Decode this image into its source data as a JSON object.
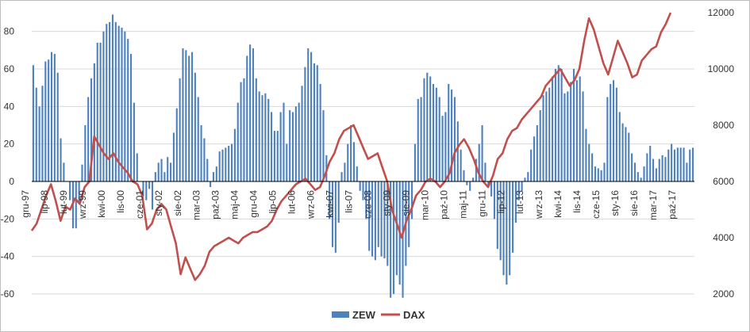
{
  "chart_data": {
    "type": "bar+line",
    "x_tick_labels": [
      "gru-97",
      "lip-98",
      "lut-99",
      "wrz-99",
      "kwi-00",
      "lis-00",
      "cze-01",
      "sty-02",
      "sie-02",
      "mar-03",
      "paź-03",
      "maj-04",
      "gru-04",
      "lip-05",
      "lut-06",
      "wrz-06",
      "kwi-07",
      "lis-07",
      "cze-08",
      "sty-09",
      "sie-09",
      "mar-10",
      "paź-10",
      "maj-11",
      "gru-11",
      "lip-12",
      "lut-13",
      "wrz-13",
      "kwi-14",
      "lis-14",
      "cze-15",
      "sty-16",
      "sie-16",
      "mar-17",
      "paź-17"
    ],
    "y_left": {
      "min": -60,
      "max": 90,
      "ticks": [
        -60,
        -40,
        -20,
        0,
        20,
        40,
        60,
        80
      ]
    },
    "y_right": {
      "min": 2000,
      "max": 12000,
      "ticks": [
        2000,
        4000,
        6000,
        8000,
        10000,
        12000
      ]
    },
    "grid": true,
    "legend_position": "bottom",
    "colors": {
      "zew": "#4f81bd",
      "dax": "#c0504d",
      "grid": "#d9d9d9",
      "axis": "#a6a6a6"
    },
    "series": [
      {
        "name": "ZEW",
        "type": "bar",
        "values": [
          62,
          50,
          40,
          51,
          64,
          65,
          69,
          68,
          58,
          23,
          10,
          0,
          -10,
          -25,
          -25,
          -12,
          9,
          30,
          45,
          55,
          63,
          74,
          74,
          80,
          84,
          85,
          89,
          85,
          83,
          82,
          80,
          76,
          68,
          42,
          15,
          0,
          -8,
          -10,
          -4,
          -15,
          5,
          10,
          12,
          5,
          13,
          10,
          26,
          39,
          55,
          71,
          70,
          67,
          69,
          58,
          45,
          30,
          23,
          12,
          -3,
          5,
          8,
          16,
          17,
          18,
          19,
          20,
          28,
          42,
          53,
          55,
          67,
          73,
          71,
          55,
          48,
          46,
          47,
          44,
          37,
          27,
          27,
          37,
          42,
          20,
          38,
          37,
          40,
          42,
          51,
          61,
          71,
          69,
          63,
          62,
          52,
          38,
          14,
          -20,
          -35,
          -38,
          -22,
          5,
          10,
          20,
          30,
          21,
          8,
          -5,
          -10,
          -20,
          -37,
          -40,
          -42,
          -35,
          -40,
          -41,
          -45,
          -62,
          -60,
          -50,
          -55,
          -62,
          -45,
          -35,
          -20,
          20,
          44,
          45,
          55,
          58,
          56,
          52,
          50,
          45,
          35,
          37,
          52,
          49,
          45,
          32,
          17,
          6,
          -2,
          -5,
          2,
          12,
          20,
          30,
          10,
          -2,
          -8,
          -20,
          -36,
          -42,
          -50,
          -55,
          -50,
          -38,
          -22,
          -10,
          -5,
          2,
          5,
          17,
          24,
          30,
          38,
          46,
          48,
          50,
          56,
          60,
          62,
          60,
          47,
          48,
          53,
          60,
          54,
          56,
          48,
          28,
          20,
          15,
          8,
          7,
          6,
          10,
          45,
          52,
          54,
          50,
          37,
          31,
          29,
          26,
          15,
          10,
          5,
          2,
          8,
          15,
          19,
          12,
          7,
          12,
          14,
          13,
          17,
          20,
          17,
          18,
          18,
          18,
          10,
          17,
          18
        ]
      },
      {
        "name": "DAX",
        "type": "line",
        "values": [
          4250,
          4500,
          5000,
          5500,
          5900,
          5300,
          4600,
          5100,
          5000,
          5400,
          5200,
          5800,
          6000,
          7600,
          7300,
          7000,
          6800,
          7000,
          6700,
          6500,
          6300,
          6000,
          5900,
          5500,
          4300,
          4500,
          5000,
          5200,
          5000,
          4400,
          3800,
          2700,
          3300,
          2900,
          2500,
          2700,
          3000,
          3500,
          3700,
          3800,
          3900,
          4000,
          3900,
          3800,
          4000,
          4100,
          4200,
          4200,
          4300,
          4400,
          4600,
          5000,
          5300,
          5500,
          5700,
          5900,
          6000,
          6100,
          5900,
          5700,
          5800,
          6200,
          6700,
          7000,
          7500,
          7800,
          7900,
          8000,
          7600,
          7200,
          6800,
          6900,
          7000,
          6500,
          6000,
          5000,
          4500,
          4000,
          4600,
          5000,
          5500,
          5700,
          6000,
          6100,
          6000,
          5800,
          6000,
          6300,
          7000,
          7300,
          7500,
          7200,
          6800,
          6300,
          6000,
          5800,
          6200,
          6800,
          7000,
          7500,
          7800,
          7900,
          8200,
          8400,
          8600,
          8800,
          9000,
          9400,
          9600,
          9800,
          10000,
          9700,
          9400,
          9600,
          10000,
          11000,
          11800,
          11400,
          10800,
          10200,
          9800,
          10400,
          11000,
          10600,
          10200,
          9700,
          9800,
          10300,
          10500,
          10700,
          10800,
          11300,
          11600,
          12000
        ]
      }
    ]
  },
  "legend": {
    "zew_label": "ZEW",
    "dax_label": "DAX"
  }
}
